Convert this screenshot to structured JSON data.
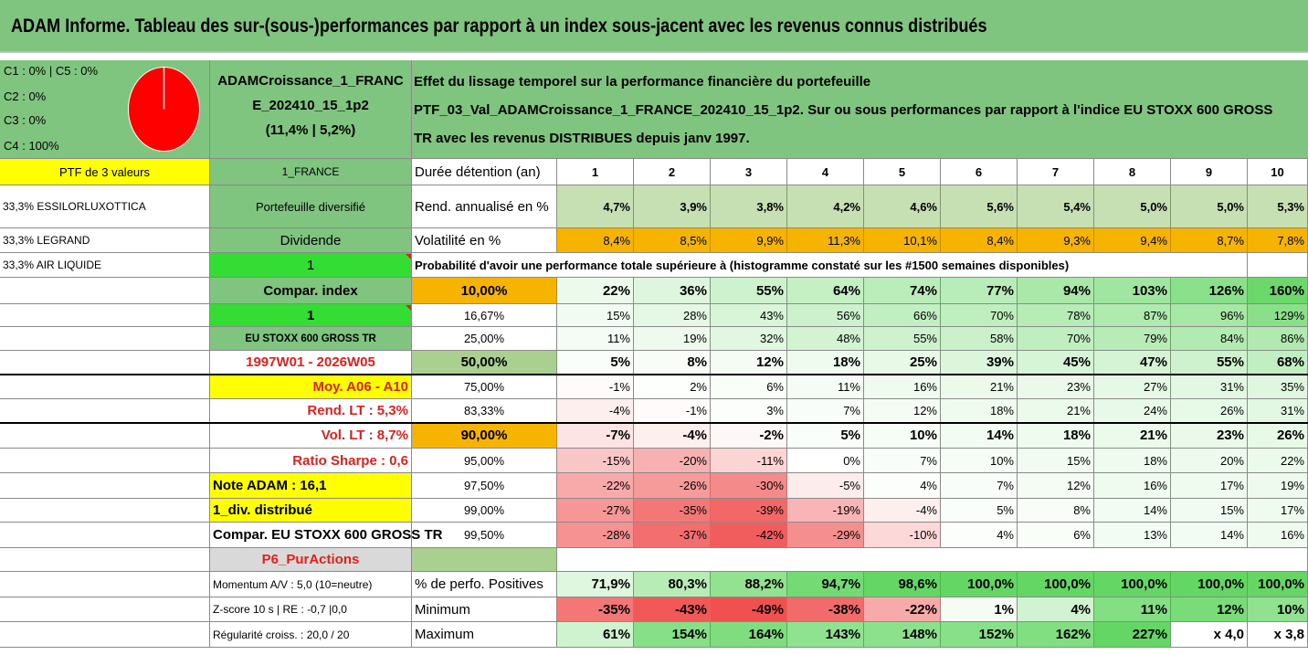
{
  "title": "ADAM Informe. Tableau des sur-(sous-)performances par rapport à un index sous-jacent avec les revenus connus distribués",
  "legend": [
    "C1 : 0% | C5 : 0%",
    "C2 : 0%",
    "C3 : 0%",
    "C4 : 100%"
  ],
  "portfolio": {
    "line1": "ADAMCroissance_1_FRANC",
    "line2": "E_202410_15_1p2",
    "line3": "(11,4% | 5,2%)"
  },
  "info": {
    "line1": "Effet du lissage temporel sur la performance financière du portefeuille",
    "line2": "PTF_03_Val_ADAMCroissance_1_FRANCE_202410_15_1p2. Sur ou sous performances par rapport à l'indice EU STOXX 600 GROSS",
    "line3": "TR avec les revenus DISTRIBUES depuis janv 1997."
  },
  "left_col": {
    "ptf": "PTF de 3 valeurs",
    "holdings": [
      "33,3% ESSILORLUXOTTICA",
      "33,3% LEGRAND",
      "33,3% AIR LIQUIDE"
    ]
  },
  "mid_col": {
    "country": "1_FRANCE",
    "diversified": "Portefeuille diversifié",
    "dividend_label": "Dividende",
    "dividend_value": "1",
    "compar_index": "Compar. index",
    "compar_value": "1",
    "index_name": "EU STOXX 600 GROSS TR",
    "period": "1997W01 - 2026W05",
    "moy": "Moy. A06 - A10",
    "rend_lt": "Rend. LT : 5,3%",
    "vol_lt": "Vol. LT : 8,7%",
    "sharpe": "Ratio Sharpe : 0,6",
    "note": "Note ADAM : 16,1",
    "div": "1_div. distribué",
    "compar_full": "Compar. EU STOXX 600 GROSS TR",
    "p6": "P6_PurActions",
    "momentum": "Momentum A/V : 5,0 (10=neutre)",
    "zscore": "Z-score 10 s | RE : -0,7 |0,0",
    "regularity": "Régularité croiss. : 20,0 / 20"
  },
  "years_label": "Durée détention (an)",
  "years": [
    "1",
    "2",
    "3",
    "4",
    "5",
    "6",
    "7",
    "8",
    "9",
    "10"
  ],
  "rend_label": "Rend. annualisé en %",
  "rend": [
    "4,7%",
    "3,9%",
    "3,8%",
    "4,2%",
    "4,6%",
    "5,6%",
    "5,4%",
    "5,0%",
    "5,0%",
    "5,3%"
  ],
  "vol_label": "Volatilité en %",
  "vol": [
    "8,4%",
    "8,5%",
    "9,9%",
    "11,3%",
    "10,1%",
    "8,4%",
    "9,3%",
    "9,4%",
    "8,7%",
    "7,8%"
  ],
  "prob_title": "Probabilité d'avoir une performance totale supérieure à (histogramme constaté sur les #1500 semaines disponibles)",
  "prob_rows": [
    {
      "p": "10,00%",
      "v": [
        "22%",
        "36%",
        "55%",
        "64%",
        "74%",
        "77%",
        "94%",
        "103%",
        "126%",
        "160%"
      ]
    },
    {
      "p": "16,67%",
      "v": [
        "15%",
        "28%",
        "43%",
        "56%",
        "66%",
        "70%",
        "78%",
        "87%",
        "96%",
        "129%"
      ]
    },
    {
      "p": "25,00%",
      "v": [
        "11%",
        "19%",
        "32%",
        "48%",
        "55%",
        "58%",
        "70%",
        "79%",
        "84%",
        "86%"
      ]
    },
    {
      "p": "50,00%",
      "v": [
        "5%",
        "8%",
        "12%",
        "18%",
        "25%",
        "39%",
        "45%",
        "47%",
        "55%",
        "68%"
      ]
    },
    {
      "p": "75,00%",
      "v": [
        "-1%",
        "2%",
        "6%",
        "11%",
        "16%",
        "21%",
        "23%",
        "27%",
        "31%",
        "35%"
      ]
    },
    {
      "p": "83,33%",
      "v": [
        "-4%",
        "-1%",
        "3%",
        "7%",
        "12%",
        "18%",
        "21%",
        "24%",
        "26%",
        "31%"
      ]
    },
    {
      "p": "90,00%",
      "v": [
        "-7%",
        "-4%",
        "-2%",
        "5%",
        "10%",
        "14%",
        "18%",
        "21%",
        "23%",
        "26%"
      ]
    },
    {
      "p": "95,00%",
      "v": [
        "-15%",
        "-20%",
        "-11%",
        "0%",
        "7%",
        "10%",
        "15%",
        "18%",
        "20%",
        "22%"
      ]
    },
    {
      "p": "97,50%",
      "v": [
        "-22%",
        "-26%",
        "-30%",
        "-5%",
        "4%",
        "7%",
        "12%",
        "16%",
        "17%",
        "19%"
      ]
    },
    {
      "p": "99,00%",
      "v": [
        "-27%",
        "-35%",
        "-39%",
        "-19%",
        "-4%",
        "5%",
        "8%",
        "14%",
        "15%",
        "17%"
      ]
    },
    {
      "p": "99,50%",
      "v": [
        "-28%",
        "-37%",
        "-42%",
        "-29%",
        "-10%",
        "4%",
        "6%",
        "13%",
        "14%",
        "16%"
      ]
    }
  ],
  "pos_label": "% de perfo. Positives",
  "pos": [
    "71,9%",
    "80,3%",
    "88,2%",
    "94,7%",
    "98,6%",
    "100,0%",
    "100,0%",
    "100,0%",
    "100,0%",
    "100,0%"
  ],
  "min_label": "Minimum",
  "min": [
    "-35%",
    "-43%",
    "-49%",
    "-38%",
    "-22%",
    "1%",
    "4%",
    "11%",
    "12%",
    "10%"
  ],
  "max_label": "Maximum",
  "max": [
    "61%",
    "154%",
    "164%",
    "143%",
    "148%",
    "152%",
    "162%",
    "227%",
    "x 4,0",
    "x 3,8"
  ],
  "colors": {
    "green_header": "#7fc47f",
    "orange": "#f6b400",
    "yellow": "#ffff00",
    "bright_green": "#33dd33",
    "light_green": "#c6e0b4",
    "red_text": "#e0201a"
  }
}
